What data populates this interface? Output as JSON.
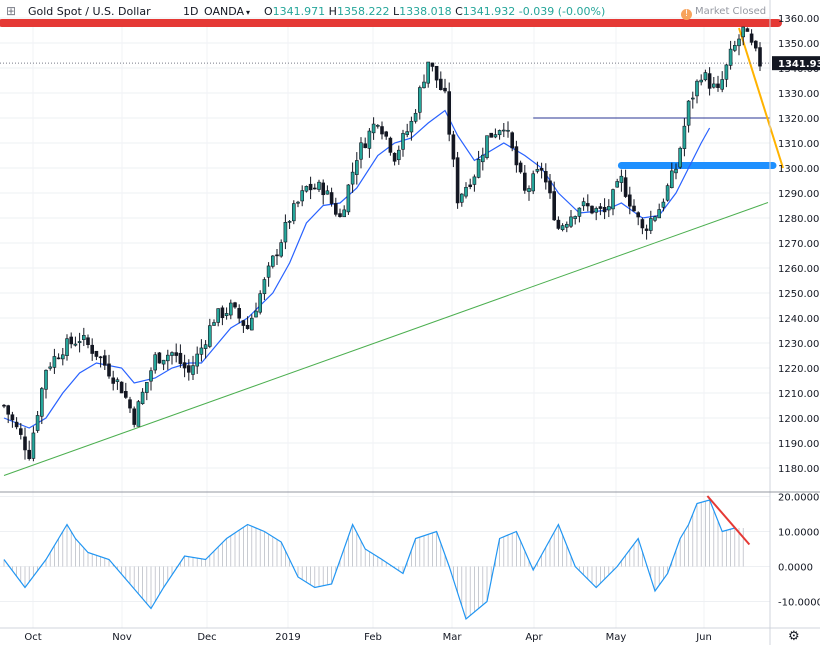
{
  "header": {
    "symbol": "Gold Spot / U.S. Dollar",
    "interval": "1D",
    "exchange": "OANDA",
    "ohlc": {
      "open_label": "O",
      "open": "1341.971",
      "high_label": "H",
      "high": "1358.222",
      "low_label": "L",
      "low": "1338.018",
      "close_label": "C",
      "close": "1341.932",
      "change": "-0.039 (-0.00%)"
    },
    "market_status": "Market Closed"
  },
  "colors": {
    "up_candle": "#26a69a",
    "down_candle": "#131722",
    "ma_line": "#2962ff",
    "support_line": "#4caf50",
    "resistance_marker": "#e53935",
    "level_marker": "#1e90ff",
    "trend_arrow": "#ffb300",
    "oscillator": "#2196f3",
    "oscillator_divergence": "#e53935",
    "last_price_tag": "#131722"
  },
  "chart_data": [
    {
      "type": "candlestick",
      "title": "Gold Spot / U.S. Dollar",
      "y_axis_ticks": [
        1180,
        1190,
        1200,
        1210,
        1220,
        1230,
        1240,
        1250,
        1260,
        1270,
        1280,
        1290,
        1300,
        1310,
        1320,
        1330,
        1340,
        1350,
        1360
      ],
      "ylim": [
        1175,
        1365
      ],
      "x_axis_labels": [
        "Oct",
        "Nov",
        "Dec",
        "2019",
        "Feb",
        "Mar",
        "Apr",
        "May",
        "Jun"
      ],
      "last_price_label": "1341.932",
      "grid": true,
      "close_path": {
        "x_index": [
          0,
          6,
          10,
          14,
          18,
          22,
          28,
          31,
          36,
          40,
          44,
          47,
          50,
          54,
          58,
          64,
          68,
          72,
          76,
          80,
          84,
          89,
          93,
          97,
          101,
          105,
          108,
          112,
          115,
          119,
          124,
          128,
          132,
          137,
          143,
          147,
          152,
          156,
          160,
          163,
          166,
          170,
          173,
          176,
          180
        ],
        "close": [
          1205,
          1186,
          1220,
          1228,
          1232,
          1226,
          1212,
          1200,
          1224,
          1226,
          1218,
          1228,
          1240,
          1244,
          1236,
          1263,
          1280,
          1292,
          1292,
          1280,
          1305,
          1320,
          1305,
          1318,
          1343,
          1328,
          1288,
          1298,
          1312,
          1318,
          1290,
          1300,
          1276,
          1285,
          1282,
          1295,
          1275,
          1284,
          1300,
          1325,
          1338,
          1330,
          1345,
          1355,
          1342
        ]
      },
      "moving_average": {
        "x_index": [
          0,
          6,
          10,
          14,
          18,
          22,
          28,
          31,
          36,
          40,
          44,
          47,
          50,
          54,
          58,
          64,
          68,
          72,
          76,
          80,
          84,
          89,
          93,
          97,
          101,
          105,
          108,
          112,
          115,
          119,
          124,
          128,
          132,
          137,
          143,
          147,
          152,
          156,
          160,
          163,
          166,
          168
        ],
        "value": [
          1200,
          1196,
          1200,
          1210,
          1218,
          1222,
          1220,
          1214,
          1216,
          1220,
          1222,
          1222,
          1228,
          1236,
          1240,
          1250,
          1262,
          1278,
          1285,
          1286,
          1292,
          1305,
          1310,
          1312,
          1318,
          1323,
          1313,
          1303,
          1306,
          1310,
          1305,
          1300,
          1290,
          1282,
          1283,
          1286,
          1280,
          1281,
          1290,
          1300,
          1310,
          1316
        ]
      },
      "drawings": {
        "resistance": {
          "x_range": [
            0,
            190
          ],
          "y": 1358
        },
        "horizontal_line": {
          "x_range": [
            126,
            180
          ],
          "y": 1320
        },
        "level_bar": {
          "x_range": [
            147,
            180
          ],
          "y": 1301
        },
        "support_trendline": {
          "x": [
            0,
            180
          ],
          "y": [
            1177,
            1286
          ]
        },
        "trend_arrow": {
          "x": [
            175,
            185
          ],
          "y": [
            1356,
            1300
          ]
        }
      }
    },
    {
      "type": "line",
      "y_axis_ticks": [
        20,
        10,
        0,
        -10
      ],
      "ylim": [
        -17,
        22
      ],
      "series": [
        {
          "x_index": [
            0,
            5,
            10,
            15,
            17,
            20,
            25,
            30,
            35,
            38,
            43,
            48,
            53,
            58,
            62,
            66,
            70,
            74,
            78,
            83,
            86,
            90,
            95,
            98,
            103,
            106,
            110,
            115,
            118,
            122,
            126,
            132,
            136,
            141,
            146,
            151,
            155,
            158,
            161,
            163,
            165,
            168,
            171,
            174
          ],
          "value": [
            2,
            -6,
            2,
            12,
            8,
            4,
            2,
            -5,
            -12,
            -6,
            3,
            2,
            8,
            12,
            10,
            7,
            -3,
            -6,
            -5,
            12,
            5,
            2,
            -2,
            8,
            10,
            0,
            -15,
            -10,
            8,
            10,
            -1,
            12,
            0,
            -6,
            0,
            8,
            -7,
            -2,
            8,
            12,
            18,
            19,
            10,
            11
          ]
        }
      ],
      "divergence_line": {
        "x": [
          167,
          177
        ],
        "y": [
          21,
          6
        ]
      }
    }
  ]
}
